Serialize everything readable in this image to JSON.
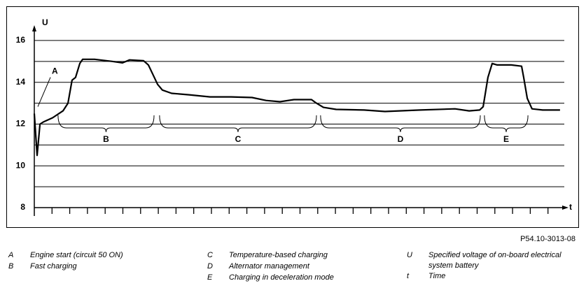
{
  "chart_data": {
    "type": "line",
    "y_label": "U",
    "x_label": "t",
    "code": "P54.10-3013-08",
    "ylim": [
      8,
      16.6
    ],
    "yticks": [
      8,
      10,
      12,
      14,
      16
    ],
    "minor_yticks": [
      9,
      11,
      13,
      15
    ],
    "xlim": [
      0,
      30
    ],
    "xticks": [
      1,
      2,
      3,
      4,
      5,
      6,
      7,
      8,
      9,
      10,
      11,
      12,
      13,
      14,
      15,
      16,
      17,
      18,
      19,
      20,
      21,
      22,
      23,
      24,
      25,
      26,
      27,
      28,
      29
    ],
    "grid": true,
    "x": [
      0,
      0.16,
      0.32,
      0.51,
      1.03,
      1.62,
      1.9,
      2.13,
      2.33,
      2.57,
      2.73,
      3.4,
      4.39,
      4.98,
      5.38,
      6.17,
      6.44,
      6.68,
      6.96,
      7.23,
      7.75,
      8.74,
      9.92,
      11.11,
      12.29,
      13.08,
      13.87,
      14.66,
      15.65,
      15.93,
      16.32,
      17.04,
      18.62,
      19.8,
      21.78,
      23.75,
      24.55,
      25.14,
      25.34,
      25.61,
      25.85,
      26.13,
      26.92,
      27.51,
      27.63,
      27.83,
      28.1,
      28.7,
      29.68
    ],
    "series": [
      {
        "color": "#000000",
        "values": [
          12.5,
          10.5,
          12.0,
          12.1,
          12.3,
          12.63,
          13.0,
          14.1,
          14.23,
          14.9,
          15.1,
          15.1,
          15.0,
          14.93,
          15.07,
          15.03,
          14.83,
          14.4,
          13.9,
          13.63,
          13.47,
          13.4,
          13.3,
          13.3,
          13.27,
          13.13,
          13.07,
          13.17,
          13.17,
          13.0,
          12.8,
          12.7,
          12.67,
          12.6,
          12.67,
          12.73,
          12.63,
          12.67,
          12.83,
          14.23,
          14.9,
          14.83,
          14.83,
          14.77,
          14.23,
          13.23,
          12.73,
          12.67,
          12.67
        ]
      }
    ],
    "point_annotation": {
      "text": "A",
      "x": 0.2,
      "y": 12.5
    },
    "range_annotations": [
      {
        "text": "B",
        "x": [
          1.34,
          6.76
        ]
      },
      {
        "text": "C",
        "x": [
          7.07,
          15.93
        ]
      },
      {
        "text": "D",
        "x": [
          16.16,
          25.18
        ]
      },
      {
        "text": "E",
        "x": [
          25.41,
          27.87
        ]
      }
    ],
    "notes": [
      {
        "key": "A",
        "text": "Engine start (circuit 50 ON)"
      },
      {
        "key": "B",
        "text": "Fast charging"
      },
      {
        "key": "C",
        "text": "Temperature-based charging"
      },
      {
        "key": "D",
        "text": "Alternator management"
      },
      {
        "key": "E",
        "text": "Charging in deceleration mode"
      },
      {
        "key": "U",
        "text": "Specified voltage of on-board electrical system battery"
      },
      {
        "key": "t",
        "text": "Time"
      }
    ]
  }
}
